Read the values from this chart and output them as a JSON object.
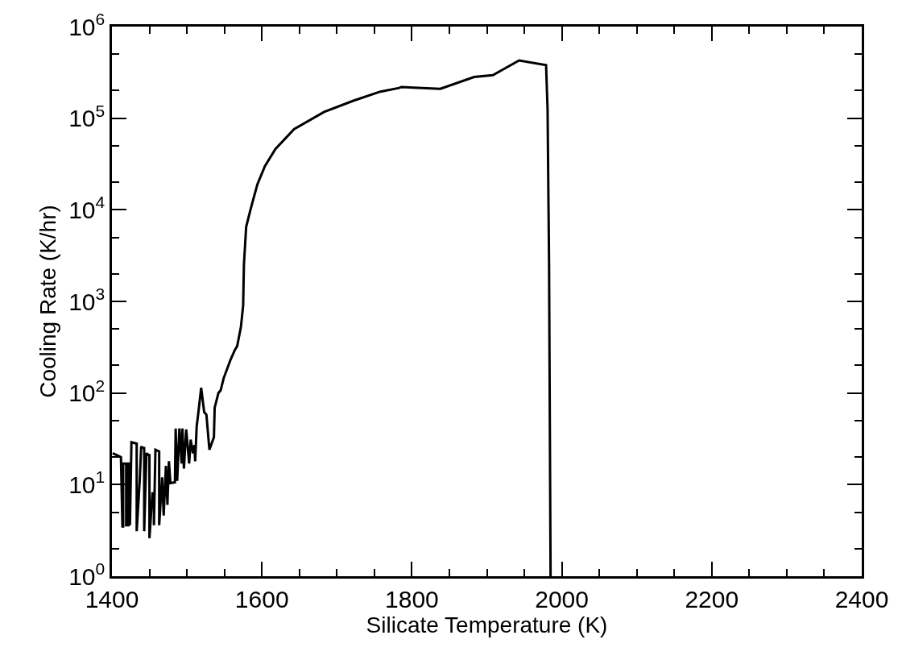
{
  "chart_data": {
    "type": "line",
    "xlabel": "Silicate Temperature (K)",
    "ylabel": "Cooling Rate (K/hr)",
    "log": "y",
    "marker": "none",
    "line_style": "solid",
    "xlim": [
      1400,
      2400
    ],
    "xticks": [
      1400,
      {
        "value": 1450,
        "label": null
      },
      {
        "value": 1500,
        "label": null
      },
      {
        "value": 1550,
        "label": null
      },
      1600,
      {
        "value": 1650,
        "label": null
      },
      {
        "value": 1700,
        "label": null
      },
      {
        "value": 1750,
        "label": null
      },
      1800,
      {
        "value": 1850,
        "label": null
      },
      {
        "value": 1900,
        "label": null
      },
      {
        "value": 1950,
        "label": null
      },
      2000,
      {
        "value": 2050,
        "label": null
      },
      {
        "value": 2100,
        "label": null
      },
      {
        "value": 2150,
        "label": null
      },
      2200,
      {
        "value": 2250,
        "label": null
      },
      {
        "value": 2300,
        "label": null
      },
      {
        "value": 2350,
        "label": null
      },
      2400
    ],
    "ylim": [
      1,
      1000000
    ],
    "yticks": [
      {
        "value": 1,
        "label": "10$^{0}$"
      },
      {
        "value": 10,
        "label": "10$^{1}$"
      },
      {
        "value": 100,
        "label": "10$^{2}$"
      },
      {
        "value": 1000,
        "label": "10$^{3}$"
      },
      {
        "value": 10000,
        "label": "10$^{4}$"
      },
      {
        "value": 100000,
        "label": "10$^{5}$"
      },
      {
        "value": 1000000,
        "label": "10$^{6}$"
      }
    ],
    "series": [
      {
        "color": "#000000",
        "x": [
          1401,
          1412,
          1414,
          1415,
          1415,
          1419,
          1419,
          1422,
          1422,
          1424,
          1424,
          1426,
          1433,
          1433,
          1437,
          1439,
          1442,
          1443,
          1443,
          1446,
          1449,
          1450,
          1450,
          1454,
          1456,
          1456,
          1458,
          1463,
          1463,
          1467,
          1469,
          1472,
          1474,
          1476,
          1478,
          1484,
          1485,
          1487,
          1490,
          1493,
          1494,
          1496,
          1499,
          1503,
          1505,
          1508,
          1510,
          1511,
          1513,
          1516,
          1519,
          1523,
          1526,
          1530,
          1536,
          1537,
          1542,
          1545,
          1549,
          1558,
          1564,
          1567,
          1572,
          1575,
          1576,
          1579,
          1585,
          1594,
          1604,
          1618,
          1643,
          1683,
          1722,
          1758,
          1783,
          1786,
          1838,
          1883,
          1908,
          1943,
          1979,
          1981,
          1983,
          1985
        ],
        "values": [
          22,
          20,
          3.5,
          3.5,
          17,
          17,
          3.6,
          3.6,
          17,
          17,
          3.6,
          29,
          28,
          3.1,
          11,
          26,
          25,
          25,
          3.1,
          22,
          21,
          21,
          2.6,
          8,
          8,
          3.6,
          24,
          23,
          3.6,
          12,
          4.6,
          16,
          6,
          18,
          10.4,
          10.6,
          41,
          11,
          41,
          17,
          41,
          15,
          40,
          17,
          31,
          22,
          27,
          18,
          43,
          69,
          114,
          62,
          58,
          24,
          33,
          69,
          100,
          107,
          145,
          229,
          296,
          325,
          525,
          900,
          2500,
          6500,
          10200,
          19000,
          30000,
          46000,
          76000,
          117000,
          155000,
          195000,
          214000,
          219000,
          209000,
          282000,
          295000,
          427000,
          380000,
          126000,
          2500,
          1
        ]
      }
    ]
  }
}
